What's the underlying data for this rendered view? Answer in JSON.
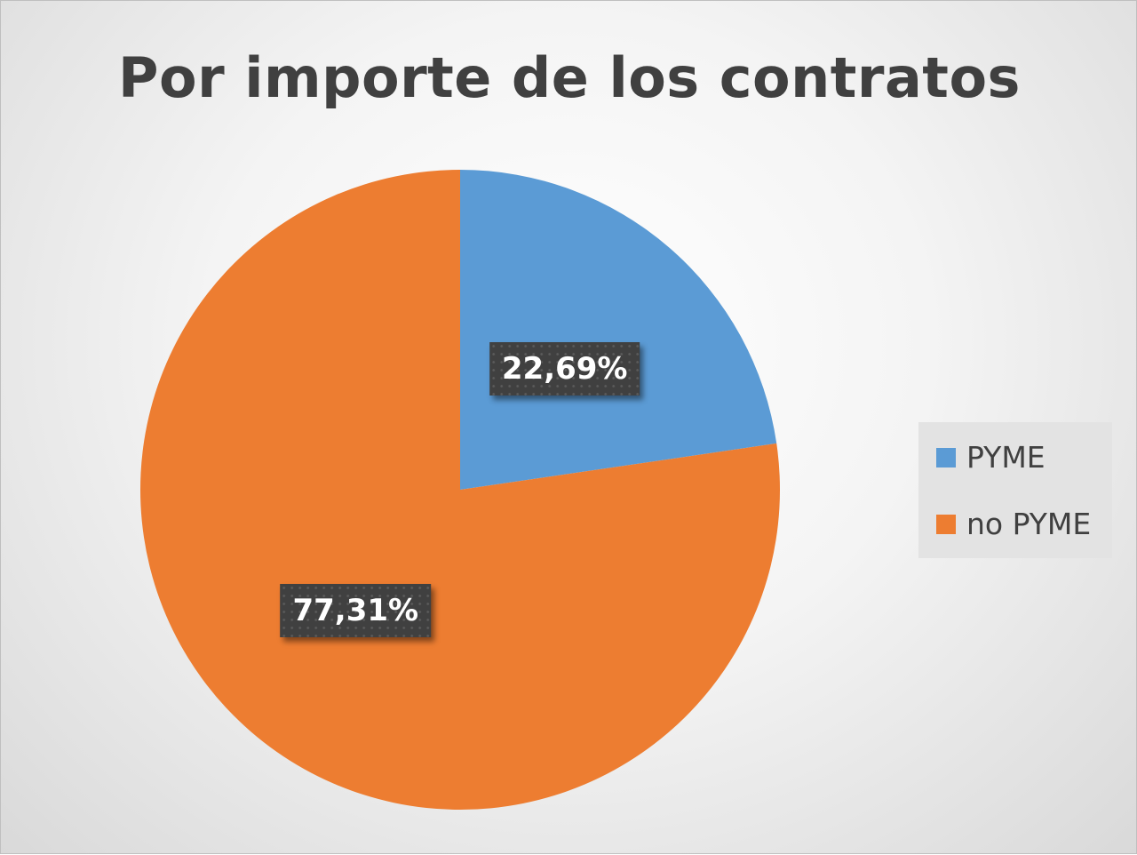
{
  "chart_data": {
    "type": "pie",
    "title": "Por importe de los contratos",
    "categories": [
      "PYME",
      "no PYME"
    ],
    "values": [
      22.69,
      77.31
    ],
    "data_labels": [
      "22,69%",
      "77,31%"
    ],
    "colors": [
      "#5B9BD5",
      "#ED7D31"
    ],
    "start_angle": "12 o'clock, clockwise",
    "legend_position": "right"
  }
}
